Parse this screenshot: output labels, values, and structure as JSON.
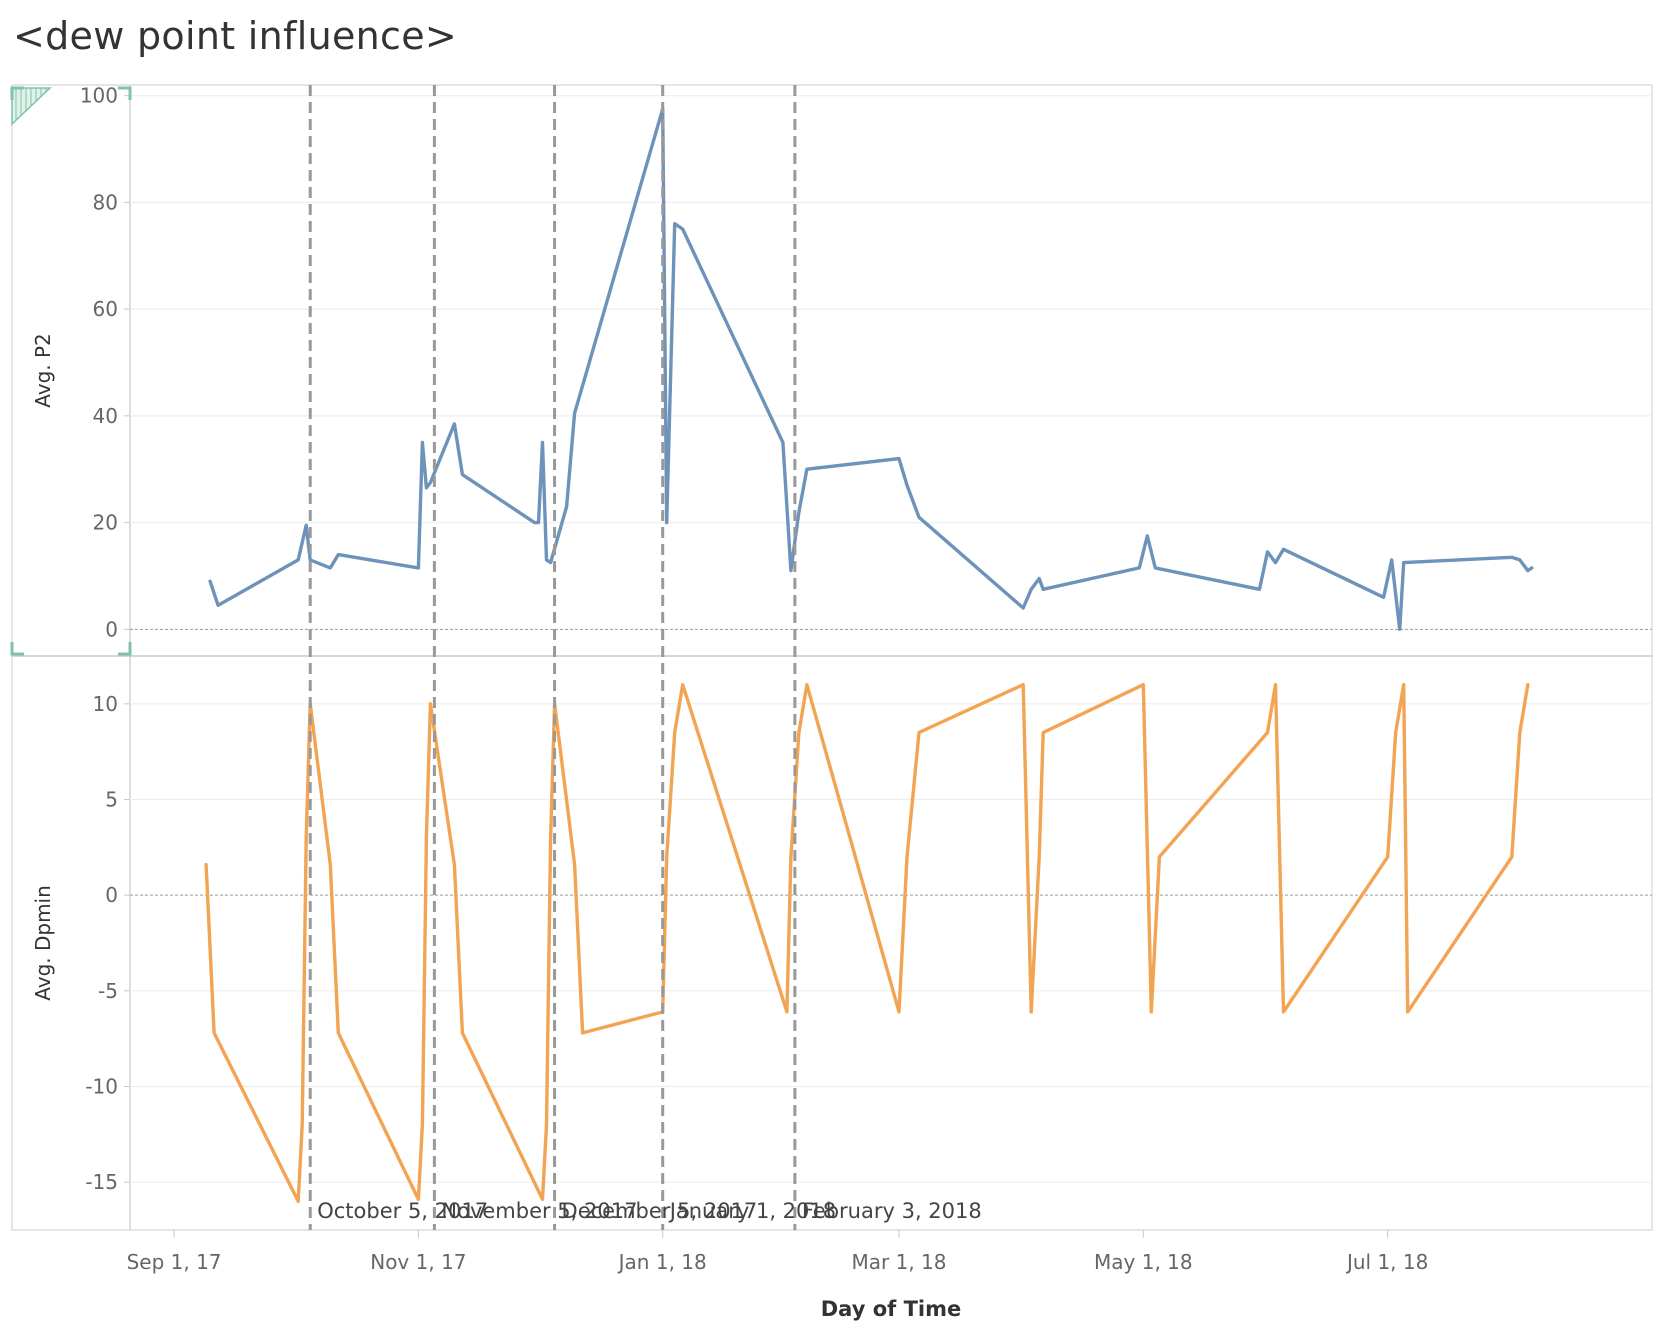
{
  "title": "<dew point influence>",
  "chart_data": {
    "type": "line",
    "xlabel": "Day of Time",
    "x_ticks": [
      "Sep 1, 17",
      "Nov 1, 17",
      "Jan 1, 18",
      "Mar 1, 18",
      "May 1, 18",
      "Jul 1, 18"
    ],
    "x_range": [
      "2017-08-21",
      "2018-09-05"
    ],
    "reference_lines": [
      {
        "date": "2017-10-05",
        "label": "October 5, 2017"
      },
      {
        "date": "2017-11-05",
        "label": "November 5, 2017"
      },
      {
        "date": "2017-12-05",
        "label": "December 5, 2017"
      },
      {
        "date": "2018-01-01",
        "label": "January 1, 2018"
      },
      {
        "date": "2018-02-03",
        "label": "February 3, 2018"
      }
    ],
    "panels": [
      {
        "ylabel": "Avg. P2",
        "ylim": [
          -5,
          102
        ],
        "y_ticks": [
          0,
          20,
          40,
          60,
          80,
          100
        ],
        "color": "#6d93bb",
        "series": [
          {
            "x": [
              "2017-09-10",
              "2017-09-12",
              "2017-10-02",
              "2017-10-04",
              "2017-10-05",
              "2017-10-10",
              "2017-10-12",
              "2017-11-01",
              "2017-11-02",
              "2017-11-03",
              "2017-11-04",
              "2017-11-10",
              "2017-11-12",
              "2017-11-30",
              "2017-12-01",
              "2017-12-02",
              "2017-12-03",
              "2017-12-04",
              "2017-12-08",
              "2017-12-10",
              "2018-01-01",
              "2018-01-02",
              "2018-01-04",
              "2018-01-06",
              "2018-01-31",
              "2018-02-02",
              "2018-02-04",
              "2018-02-06",
              "2018-03-01",
              "2018-03-03",
              "2018-03-06",
              "2018-04-01",
              "2018-04-03",
              "2018-04-05",
              "2018-04-06",
              "2018-04-30",
              "2018-05-02",
              "2018-05-04",
              "2018-05-30",
              "2018-06-01",
              "2018-06-03",
              "2018-06-05",
              "2018-06-30",
              "2018-07-02",
              "2018-07-04",
              "2018-07-05",
              "2018-08-01",
              "2018-08-03",
              "2018-08-05",
              "2018-08-06"
            ],
            "y": [
              9,
              4.5,
              13,
              19.5,
              13,
              11.5,
              14,
              11.5,
              35,
              26.5,
              27.5,
              38.5,
              29,
              20,
              20,
              35,
              13,
              12.5,
              23,
              40.5,
              97.5,
              20,
              76,
              75,
              35,
              11,
              22,
              30,
              32,
              27,
              21,
              4,
              7.5,
              9.5,
              7.5,
              11.5,
              17.5,
              11.5,
              7.5,
              14.5,
              12.5,
              15,
              6,
              13,
              0,
              12.5,
              13.5,
              13,
              11,
              11.5
            ]
          }
        ]
      },
      {
        "ylabel": "Avg. Dpmin",
        "ylim": [
          -17.5,
          12.5
        ],
        "y_ticks": [
          10,
          5,
          0,
          -5,
          -10,
          -15
        ],
        "color": "#f3a452",
        "series": [
          {
            "x": [
              "2017-09-09",
              "2017-09-11",
              "2017-10-02",
              "2017-10-03",
              "2017-10-04",
              "2017-10-05",
              "2017-10-10",
              "2017-10-12",
              "2017-11-01",
              "2017-11-02",
              "2017-11-03",
              "2017-11-04",
              "2017-11-10",
              "2017-11-12",
              "2017-12-02",
              "2017-12-03",
              "2017-12-04",
              "2017-12-05",
              "2017-12-10",
              "2017-12-12",
              "2018-01-01",
              "2018-01-02",
              "2018-01-04",
              "2018-01-06",
              "2018-02-01",
              "2018-02-02",
              "2018-02-04",
              "2018-02-06",
              "2018-03-01",
              "2018-03-03",
              "2018-03-06",
              "2018-04-01",
              "2018-04-03",
              "2018-04-05",
              "2018-04-06",
              "2018-05-01",
              "2018-05-03",
              "2018-05-05",
              "2018-06-01",
              "2018-06-03",
              "2018-06-05",
              "2018-07-01",
              "2018-07-03",
              "2018-07-05",
              "2018-07-06",
              "2018-08-01",
              "2018-08-03",
              "2018-08-05"
            ],
            "y": [
              1.6,
              -7.2,
              -16,
              -12,
              3,
              10,
              1.6,
              -7.2,
              -15.9,
              -12,
              3,
              10,
              1.6,
              -7.2,
              -15.9,
              -12,
              3,
              10,
              1.6,
              -7.2,
              -6.1,
              2,
              8.5,
              11,
              -6.1,
              2,
              8.5,
              11,
              -6.1,
              2,
              8.5,
              11,
              -6.1,
              2,
              8.5,
              11,
              -6.1,
              2,
              8.5,
              11,
              -6.1,
              2,
              8.5,
              11,
              -6.1,
              2,
              8.5,
              11
            ]
          }
        ]
      }
    ]
  }
}
